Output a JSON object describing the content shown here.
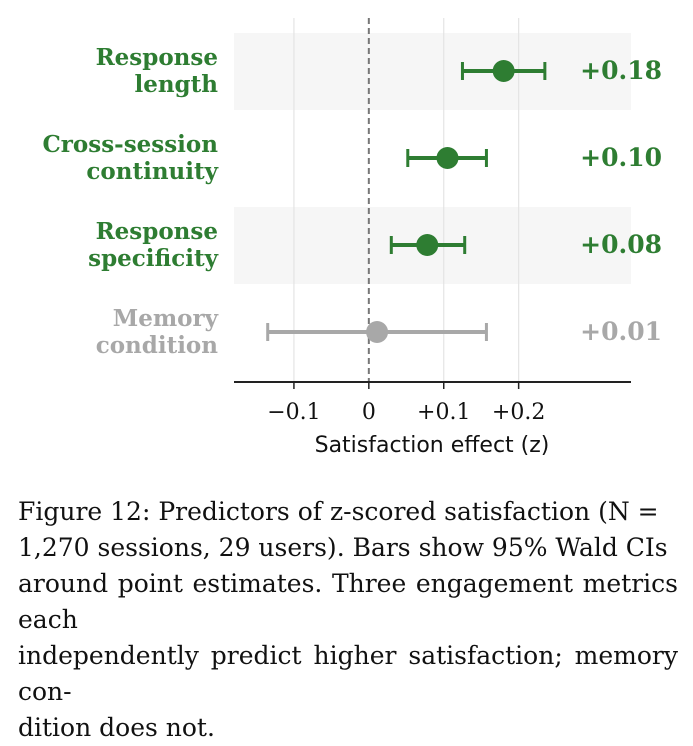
{
  "chart_data": {
    "type": "forest",
    "xlabel": "Satisfaction effect (z)",
    "xlim": [
      -0.18,
      0.35
    ],
    "xticks": [
      {
        "value": -0.1,
        "label": "−0.1"
      },
      {
        "value": 0,
        "label": "0"
      },
      {
        "value": 0.1,
        "label": "+0.1"
      },
      {
        "value": 0.2,
        "label": "+0.2"
      }
    ],
    "reference_line": 0,
    "grid": "vertical",
    "rows": [
      {
        "label_line1": "Response",
        "label_line2": "length",
        "estimate": 0.18,
        "ci_low": 0.125,
        "ci_high": 0.235,
        "value_label": "+0.18",
        "color": "#2e7d32",
        "shaded": true
      },
      {
        "label_line1": "Cross-session",
        "label_line2": "continuity",
        "estimate": 0.105,
        "ci_low": 0.052,
        "ci_high": 0.157,
        "value_label": "+0.10",
        "color": "#2e7d32",
        "shaded": false
      },
      {
        "label_line1": "Response",
        "label_line2": "specificity",
        "estimate": 0.078,
        "ci_low": 0.03,
        "ci_high": 0.128,
        "value_label": "+0.08",
        "color": "#2e7d32",
        "shaded": true
      },
      {
        "label_line1": "Memory",
        "label_line2": "condition",
        "estimate": 0.011,
        "ci_low": -0.135,
        "ci_high": 0.157,
        "value_label": "+0.01",
        "color": "#a8a8a8",
        "shaded": false
      }
    ]
  },
  "caption": {
    "line1": "Figure 12: Predictors of z-scored satisfaction (N =",
    "line2": "1,270 sessions, 29 users). Bars show 95% Wald CIs",
    "line3": "around point estimates. Three engagement metrics each",
    "line4": "independently predict higher satisfaction; memory con-",
    "line5": "dition does not."
  }
}
